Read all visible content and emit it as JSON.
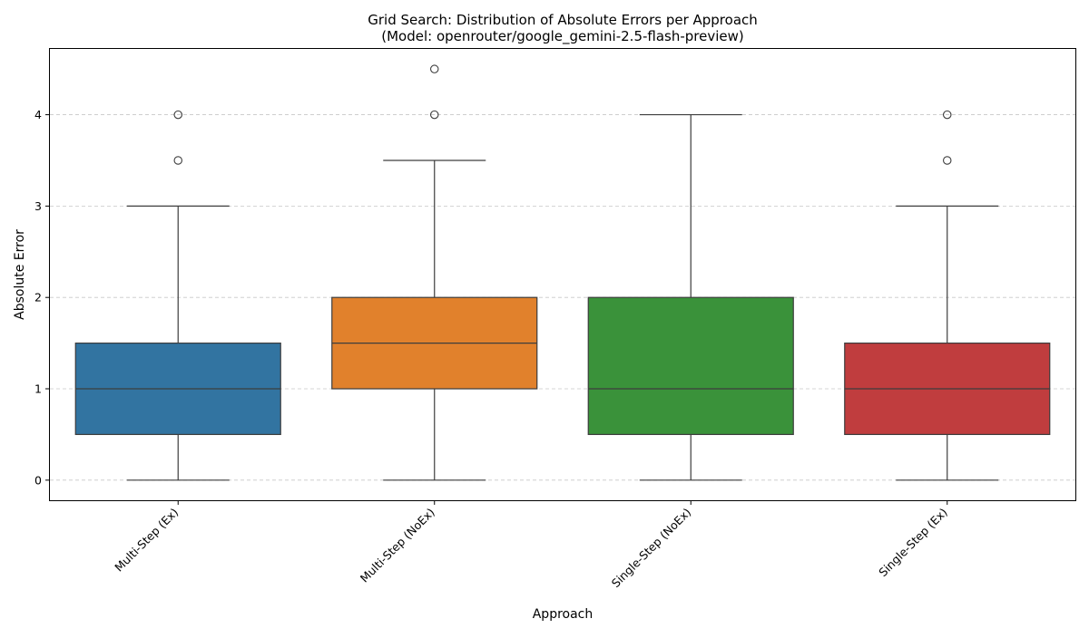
{
  "chart_data": {
    "type": "box",
    "title": "Grid Search: Distribution of Absolute Errors per Approach",
    "subtitle": "(Model: openrouter/google_gemini-2.5-flash-preview)",
    "xlabel": "Approach",
    "ylabel": "Absolute Error",
    "ylim": [
      -0.22,
      4.72
    ],
    "yticks": [
      0,
      1,
      2,
      3,
      4
    ],
    "grid": "y-dashed",
    "categories": [
      "Multi-Step (Ex)",
      "Multi-Step (NoEx)",
      "Single-Step (NoEx)",
      "Single-Step (Ex)"
    ],
    "boxes": [
      {
        "category": "Multi-Step (Ex)",
        "color": "#3274a1",
        "whisker_low": 0,
        "q1": 0.5,
        "median": 1.0,
        "q3": 1.5,
        "whisker_high": 3.0,
        "outliers": [
          3.5,
          4.0
        ]
      },
      {
        "category": "Multi-Step (NoEx)",
        "color": "#e1812c",
        "whisker_low": 0,
        "q1": 1.0,
        "median": 1.5,
        "q3": 2.0,
        "whisker_high": 3.5,
        "outliers": [
          4.0,
          4.5
        ]
      },
      {
        "category": "Single-Step (NoEx)",
        "color": "#3a923a",
        "whisker_low": 0,
        "q1": 0.5,
        "median": 1.0,
        "q3": 2.0,
        "whisker_high": 4.0,
        "outliers": []
      },
      {
        "category": "Single-Step (Ex)",
        "color": "#c03d3e",
        "whisker_low": 0,
        "q1": 0.5,
        "median": 1.0,
        "q3": 1.5,
        "whisker_high": 3.0,
        "outliers": [
          3.5,
          4.0
        ]
      }
    ]
  }
}
